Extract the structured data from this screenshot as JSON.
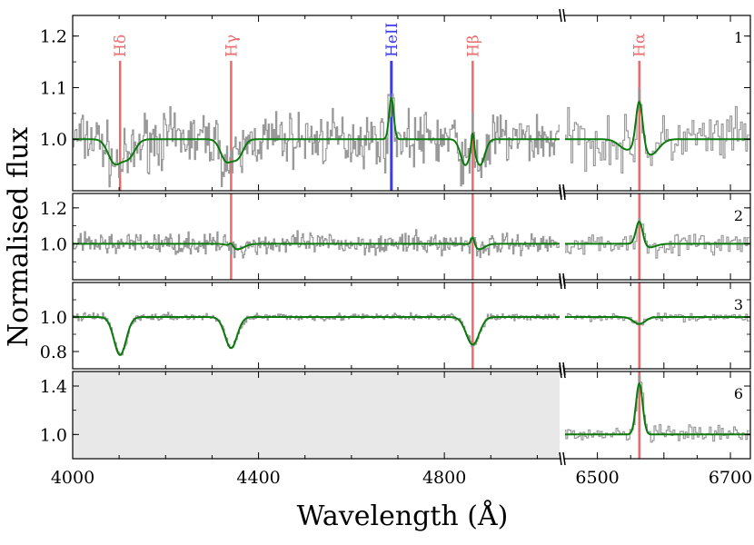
{
  "chart_data": {
    "type": "line",
    "ylabel": "Normalised flux",
    "xlabel": "Wavelength (Å)",
    "left_xlim": [
      4000,
      5050
    ],
    "right_xlim": [
      6450,
      6730
    ],
    "left_xticks": [
      "4000",
      "4400",
      "4800"
    ],
    "right_xticks": [
      "6500",
      "6700"
    ],
    "left_xticks_values": [
      4000,
      4400,
      4800
    ],
    "right_xticks_values": [
      6500,
      6700
    ],
    "colors": {
      "data": "#999999",
      "model": "#0a7a0a",
      "balmer": "#ee6a6a",
      "heii": "#3a3aee",
      "shade": "#e8e8e8"
    },
    "lines": [
      {
        "label": "Hδ",
        "wavelength": 4102,
        "color_key": "balmer"
      },
      {
        "label": "Hγ",
        "wavelength": 4341,
        "color_key": "balmer"
      },
      {
        "label": "HeII",
        "wavelength": 4686,
        "color_key": "heii"
      },
      {
        "label": "Hβ",
        "wavelength": 4861,
        "color_key": "balmer"
      },
      {
        "label": "Hα",
        "wavelength": 6563,
        "color_key": "balmer"
      }
    ],
    "panels": [
      {
        "id": "1",
        "ylim": [
          0.9,
          1.24
        ],
        "yticks": [
          "1.0",
          "1.1",
          "1.2"
        ],
        "ytick_values": [
          1.0,
          1.1,
          1.2
        ],
        "line_marks": [
          "Hδ",
          "Hγ",
          "HeII",
          "Hβ",
          "Hα"
        ],
        "noise": 0.045,
        "has_left_data": true,
        "features": [
          {
            "center": 4090,
            "amp": -0.045,
            "width": 14
          },
          {
            "center": 4120,
            "amp": -0.035,
            "width": 14
          },
          {
            "center": 4330,
            "amp": -0.04,
            "width": 12
          },
          {
            "center": 4355,
            "amp": -0.035,
            "width": 12
          },
          {
            "center": 4686,
            "amp": 0.08,
            "width": 5
          },
          {
            "center": 4845,
            "amp": -0.05,
            "width": 10
          },
          {
            "center": 4861,
            "amp": 0.04,
            "width": 3
          },
          {
            "center": 4877,
            "amp": -0.05,
            "width": 10
          },
          {
            "center": 6545,
            "amp": -0.02,
            "width": 12
          },
          {
            "center": 6563,
            "amp": 0.09,
            "width": 5
          },
          {
            "center": 6580,
            "amp": -0.03,
            "width": 12
          }
        ]
      },
      {
        "id": "2",
        "ylim": [
          0.8,
          1.28
        ],
        "yticks": [
          "1.0",
          "1.2"
        ],
        "ytick_values": [
          1.0,
          1.2
        ],
        "line_marks": [
          "Hγ",
          "Hβ",
          "Hα"
        ],
        "noise": 0.05,
        "has_left_data": true,
        "features": [
          {
            "center": 4341,
            "amp": 0.02,
            "width": 4
          },
          {
            "center": 4355,
            "amp": -0.03,
            "width": 14
          },
          {
            "center": 4861,
            "amp": 0.05,
            "width": 4
          },
          {
            "center": 4875,
            "amp": -0.03,
            "width": 12
          },
          {
            "center": 6563,
            "amp": 0.13,
            "width": 5
          },
          {
            "center": 6578,
            "amp": -0.02,
            "width": 10
          }
        ]
      },
      {
        "id": "3",
        "ylim": [
          0.7,
          1.2
        ],
        "yticks": [
          "0.8",
          "1.0"
        ],
        "ytick_values": [
          0.8,
          1.0
        ],
        "line_marks": [
          "Hβ",
          "Hα"
        ],
        "noise": 0.018,
        "has_left_data": true,
        "features": [
          {
            "center": 4102,
            "amp": -0.22,
            "width": 13
          },
          {
            "center": 4341,
            "amp": -0.18,
            "width": 13
          },
          {
            "center": 4861,
            "amp": -0.16,
            "width": 14
          },
          {
            "center": 6563,
            "amp": -0.04,
            "width": 9
          }
        ]
      },
      {
        "id": "6",
        "ylim": [
          0.8,
          1.52
        ],
        "yticks": [
          "1.0",
          "1.4"
        ],
        "ytick_values": [
          1.0,
          1.4
        ],
        "line_marks": [
          "Hα"
        ],
        "noise": 0.06,
        "has_left_data": false,
        "features": [
          {
            "center": 6563,
            "amp": 0.42,
            "width": 5
          }
        ]
      }
    ]
  }
}
